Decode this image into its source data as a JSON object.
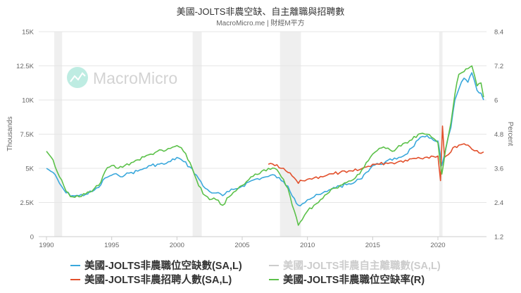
{
  "header": {
    "title": "美國-JOLTS非農空缺、自主離職與招聘數",
    "subtitle": "MacroMicro.me | 財經M平方"
  },
  "watermark": {
    "text": "MacroMicro",
    "icon": "macromicro-logo-icon"
  },
  "colors": {
    "openings": "#3aa8dc",
    "quits": "#cccccc",
    "hires": "#e2502c",
    "rate": "#5cc14a",
    "grid": "#e6e6e6",
    "recession": "#efefef"
  },
  "chart_data": {
    "type": "line",
    "title": "美國-JOLTS非農空缺、自主離職與招聘數",
    "subtitle": "MacroMicro.me | 財經M平方",
    "xlabel": "",
    "ylabel": "Thousands",
    "ylabel_right": "Percent",
    "ylim": [
      0,
      15000
    ],
    "ylim_right": [
      1.2,
      8.4
    ],
    "xlim": [
      1989.6,
      2023.9
    ],
    "x_ticks": [
      "1990",
      "1995",
      "2000",
      "2005",
      "2010",
      "2015",
      "2020"
    ],
    "y_ticks": [
      "0",
      "2.5K",
      "5K",
      "7.5K",
      "10K",
      "12.5K",
      "15K"
    ],
    "y_ticks_right": [
      "1.2",
      "2.4",
      "3.6",
      "4.8",
      "6",
      "7.2",
      "8.4"
    ],
    "grid": true,
    "legend_position": "bottom",
    "recessions": [
      [
        1990.6,
        1991.2
      ],
      [
        2001.2,
        2001.9
      ],
      [
        2007.9,
        2009.5
      ],
      [
        2020.1,
        2020.35
      ]
    ],
    "series": [
      {
        "name": "美國-JOLTS非農職位空缺數(SA,L)",
        "axis": "left",
        "x": [
          1990.0,
          1990.5,
          1991.0,
          1991.5,
          1992.0,
          1992.5,
          1993.0,
          1993.5,
          1994.0,
          1994.5,
          1995.0,
          1995.5,
          1996.0,
          1996.5,
          1997.0,
          1997.5,
          1998.0,
          1998.5,
          1999.0,
          1999.5,
          2000.0,
          2000.5,
          2001.0,
          2001.5,
          2002.0,
          2002.5,
          2003.0,
          2003.5,
          2004.0,
          2004.5,
          2005.0,
          2005.5,
          2006.0,
          2006.5,
          2007.0,
          2007.5,
          2008.0,
          2008.5,
          2009.0,
          2009.3,
          2009.6,
          2010.0,
          2010.5,
          2011.0,
          2011.5,
          2012.0,
          2012.5,
          2013.0,
          2013.5,
          2014.0,
          2014.5,
          2015.0,
          2015.5,
          2016.0,
          2016.5,
          2017.0,
          2017.5,
          2018.0,
          2018.5,
          2019.0,
          2019.5,
          2020.0,
          2020.3,
          2020.6,
          2021.0,
          2021.3,
          2021.6,
          2022.0,
          2022.3,
          2022.6,
          2023.0,
          2023.3,
          2023.5
        ],
        "values": [
          5000,
          4700,
          3900,
          3200,
          3000,
          3000,
          3100,
          3300,
          3600,
          4300,
          4500,
          4500,
          4500,
          4700,
          4800,
          5000,
          5200,
          5300,
          5300,
          5500,
          5800,
          5500,
          5100,
          4500,
          3700,
          3300,
          3200,
          3000,
          3300,
          3500,
          3700,
          4000,
          4200,
          4300,
          4400,
          4500,
          4100,
          3700,
          2800,
          2300,
          2400,
          2700,
          2900,
          3100,
          3300,
          3600,
          3700,
          3800,
          3900,
          4200,
          4700,
          5200,
          5300,
          5500,
          5600,
          5800,
          6000,
          6500,
          7100,
          7300,
          7200,
          7000,
          5200,
          6400,
          8000,
          10000,
          10800,
          11600,
          11300,
          12000,
          10700,
          10500,
          10000
        ],
        "color": "#3aa8dc"
      },
      {
        "name": "美國-JOLTS非農自主離職數(SA,L)",
        "axis": "left",
        "hidden": true,
        "x": [],
        "values": [],
        "color": "#cccccc"
      },
      {
        "name": "美國-JOLTS非農招聘人數(SA,L)",
        "axis": "left",
        "x": [
          2007.0,
          2007.5,
          2008.0,
          2008.5,
          2009.0,
          2009.3,
          2009.6,
          2010.0,
          2010.5,
          2011.0,
          2011.5,
          2012.0,
          2012.5,
          2013.0,
          2013.5,
          2014.0,
          2014.5,
          2015.0,
          2015.5,
          2016.0,
          2016.5,
          2017.0,
          2017.5,
          2018.0,
          2018.5,
          2019.0,
          2019.5,
          2020.0,
          2020.2,
          2020.35,
          2020.5,
          2020.8,
          2021.0,
          2021.3,
          2021.6,
          2022.0,
          2022.3,
          2022.6,
          2023.0,
          2023.3,
          2023.5
        ],
        "values": [
          5300,
          5200,
          5000,
          4700,
          4300,
          3900,
          4100,
          4200,
          4300,
          4400,
          4500,
          4600,
          4700,
          4700,
          4800,
          4900,
          5100,
          5300,
          5300,
          5400,
          5400,
          5500,
          5600,
          5700,
          5800,
          5800,
          5900,
          5900,
          4100,
          8100,
          5800,
          6000,
          6200,
          6600,
          6700,
          6800,
          6700,
          6400,
          6300,
          6100,
          6200
        ],
        "color": "#e2502c"
      },
      {
        "name": "美國-JOLTS非農職位空缺率(R)",
        "axis": "right",
        "x": [
          1990.0,
          1990.5,
          1991.0,
          1991.5,
          1992.0,
          1992.5,
          1993.0,
          1993.5,
          1994.0,
          1994.5,
          1995.0,
          1995.5,
          1996.0,
          1996.5,
          1997.0,
          1997.5,
          1998.0,
          1998.5,
          1999.0,
          1999.5,
          2000.0,
          2000.5,
          2001.0,
          2001.5,
          2002.0,
          2002.5,
          2003.0,
          2003.5,
          2004.0,
          2004.5,
          2005.0,
          2005.5,
          2006.0,
          2006.5,
          2007.0,
          2007.5,
          2008.0,
          2008.5,
          2009.0,
          2009.3,
          2009.6,
          2010.0,
          2010.5,
          2011.0,
          2011.5,
          2012.0,
          2012.5,
          2013.0,
          2013.5,
          2014.0,
          2014.5,
          2015.0,
          2015.5,
          2016.0,
          2016.5,
          2017.0,
          2017.5,
          2018.0,
          2018.5,
          2019.0,
          2019.5,
          2020.0,
          2020.3,
          2020.6,
          2021.0,
          2021.3,
          2021.6,
          2022.0,
          2022.3,
          2022.6,
          2023.0,
          2023.3,
          2023.5
        ],
        "values": [
          4.2,
          3.9,
          3.3,
          2.8,
          2.6,
          2.6,
          2.7,
          2.8,
          3.0,
          3.5,
          3.7,
          3.6,
          3.7,
          3.8,
          3.9,
          4.0,
          4.1,
          4.2,
          4.2,
          4.3,
          4.4,
          4.2,
          3.8,
          3.2,
          2.7,
          2.5,
          2.5,
          2.3,
          2.6,
          2.8,
          3.0,
          3.2,
          3.4,
          3.5,
          3.6,
          3.6,
          3.3,
          2.9,
          2.1,
          1.6,
          1.8,
          2.1,
          2.3,
          2.5,
          2.7,
          2.9,
          3.0,
          3.1,
          3.2,
          3.4,
          3.8,
          4.1,
          4.3,
          4.3,
          4.2,
          4.4,
          4.5,
          4.6,
          4.8,
          4.8,
          4.7,
          4.5,
          3.4,
          4.3,
          5.2,
          6.2,
          6.9,
          7.0,
          7.1,
          7.2,
          6.5,
          6.6,
          6.1
        ],
        "color": "#5cc14a"
      }
    ]
  },
  "legend": {
    "items": [
      {
        "label": "美國-JOLTS非農職位空缺數(SA,L)",
        "color": "#3aa8dc",
        "active": true
      },
      {
        "label": "美國-JOLTS非農自主離職數(SA,L)",
        "color": "#cccccc",
        "active": false
      },
      {
        "label": "美國-JOLTS非農招聘人數(SA,L)",
        "color": "#e2502c",
        "active": true
      },
      {
        "label": "美國-JOLTS非農職位空缺率(R)",
        "color": "#5cc14a",
        "active": true
      }
    ]
  }
}
